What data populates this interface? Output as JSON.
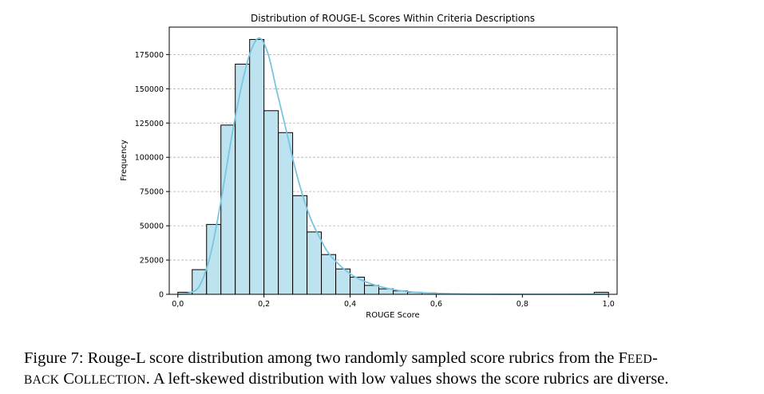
{
  "chart_data": {
    "type": "bar",
    "subtype": "histogram-with-kde",
    "title": "Distribution of ROUGE-L Scores Within Criteria Descriptions",
    "xlabel": "ROUGE Score",
    "ylabel": "Frequency",
    "xlim": [
      -0.02,
      1.02
    ],
    "ylim": [
      0,
      195000
    ],
    "x_ticks": [
      0.0,
      0.2,
      0.4,
      0.6,
      0.8,
      1.0
    ],
    "x_tick_labels": [
      "0,0",
      "0,2",
      "0,4",
      "0,6",
      "0,8",
      "1,0"
    ],
    "y_ticks": [
      0,
      25000,
      50000,
      75000,
      100000,
      125000,
      150000,
      175000
    ],
    "y_tick_labels": [
      "0",
      "25000",
      "50000",
      "75000",
      "100000",
      "125000",
      "150000",
      "175000"
    ],
    "grid": "y-dashed",
    "bin_width": 0.0333,
    "bins_start": [
      0.0,
      0.0333,
      0.0667,
      0.1,
      0.1333,
      0.1667,
      0.2,
      0.2333,
      0.2667,
      0.3,
      0.3333,
      0.3667,
      0.4,
      0.4333,
      0.4667,
      0.5,
      0.5333,
      0.5667,
      0.6,
      0.6333,
      0.9667
    ],
    "values": [
      1500,
      18000,
      51000,
      123500,
      168000,
      186000,
      134000,
      118000,
      72000,
      45500,
      29000,
      18500,
      12500,
      6500,
      4000,
      2500,
      1500,
      1000,
      500,
      200,
      1500
    ],
    "kde_x": [
      0.0,
      0.025,
      0.05,
      0.075,
      0.1,
      0.125,
      0.15,
      0.17,
      0.19,
      0.21,
      0.23,
      0.25,
      0.27,
      0.29,
      0.31,
      0.33,
      0.35,
      0.38,
      0.41,
      0.45,
      0.5,
      0.55,
      0.6,
      0.65,
      0.7,
      0.8,
      0.9,
      0.97,
      1.0
    ],
    "kde_y": [
      0,
      1000,
      6000,
      28000,
      68000,
      115000,
      155000,
      178000,
      187000,
      175000,
      148000,
      122000,
      95000,
      72000,
      54000,
      41000,
      30000,
      20000,
      13000,
      7500,
      3500,
      1500,
      700,
      250,
      80,
      20,
      10,
      40,
      60
    ],
    "colors": {
      "bar_fill": "#bde3f0",
      "bar_edge": "#000000",
      "kde_line": "#7ac5e0"
    }
  },
  "caption": {
    "label": "Figure 7:",
    "text_before": "Rouge-L score distribution among two randomly sampled score rubrics from the",
    "sc_first_1": "F",
    "sc_rest_1": "EED",
    "hyphen": "-",
    "sc_rest_2": "BACK",
    "sc_first_2": "C",
    "sc_rest_3": "OLLECTION",
    "text_after": ". A left-skewed distribution with low values shows the score rubrics are diverse."
  }
}
